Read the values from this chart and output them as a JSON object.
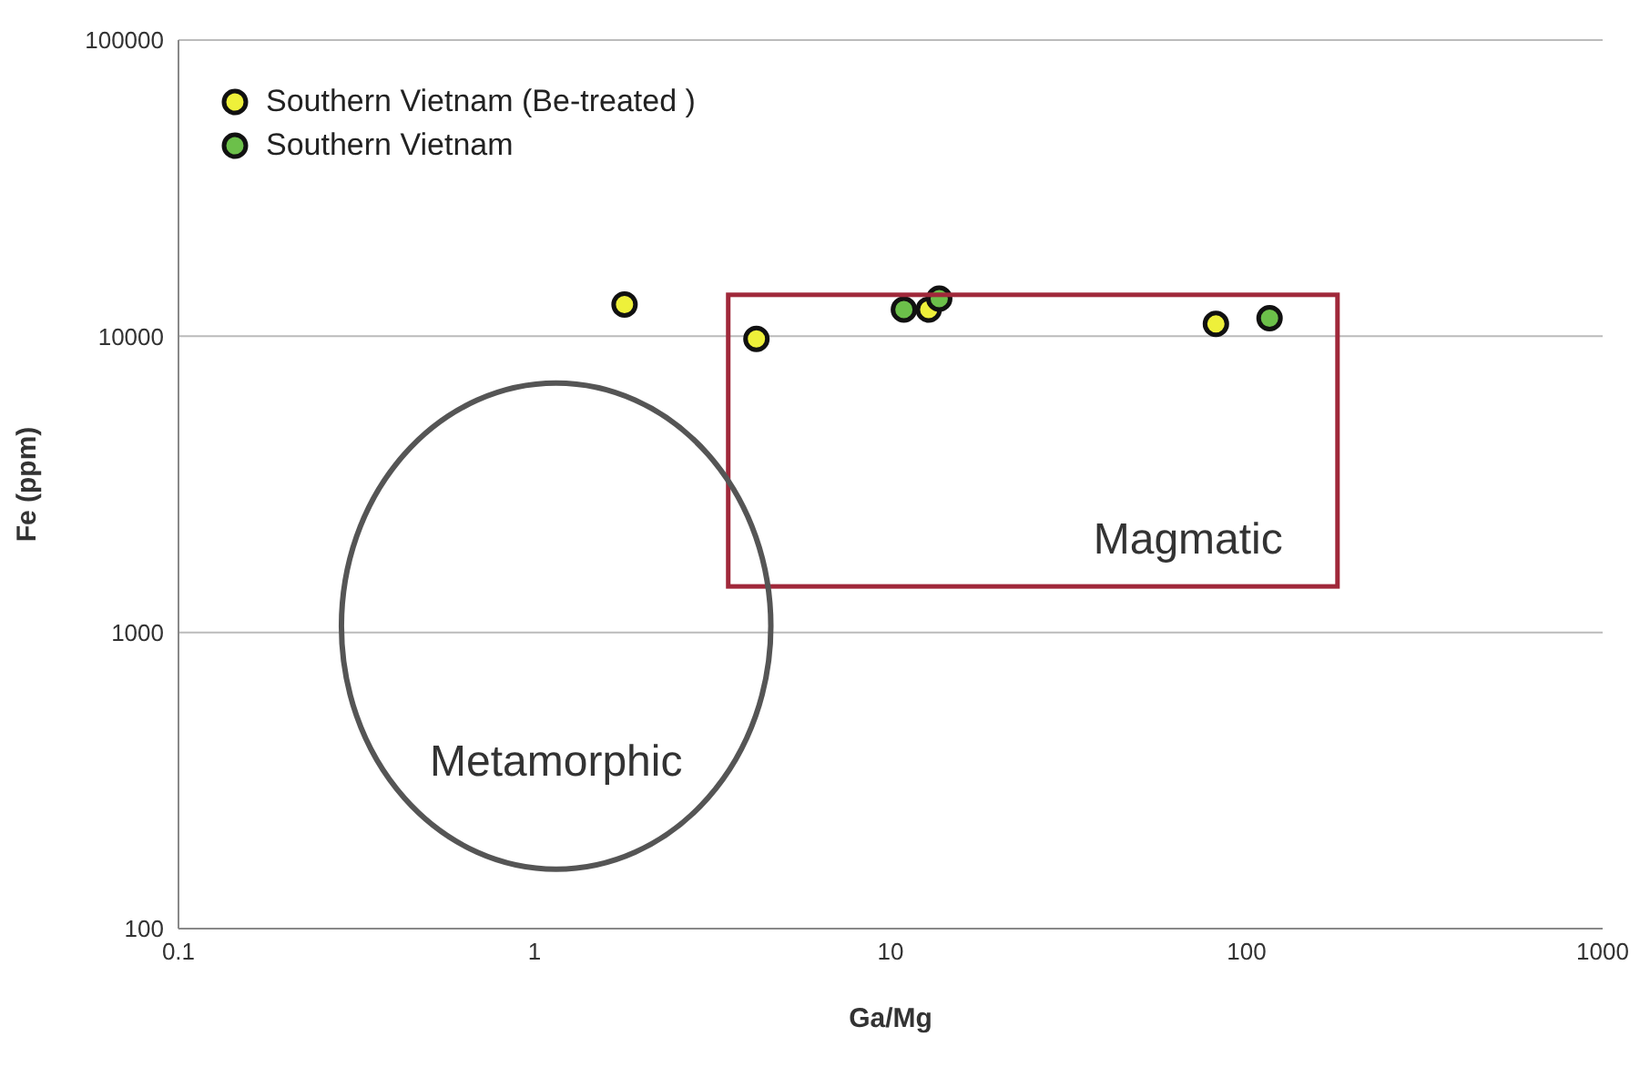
{
  "chart_data": {
    "type": "scatter",
    "xlabel": "Ga/Mg",
    "ylabel": "Fe (ppm)",
    "series": [
      {
        "name": "Southern Vietnam (Be-treated )",
        "color": "#eef03a",
        "x": [
          1.79,
          4.2,
          12.8,
          82
        ],
        "values": [
          12800,
          9800,
          12300,
          11000
        ]
      },
      {
        "name": "Southern Vietnam",
        "color": "#6cc04a",
        "x": [
          10.9,
          13.7,
          116
        ],
        "values": [
          12300,
          13400,
          11500
        ]
      }
    ],
    "annotations": [
      "Magmatic",
      "Metamorphic"
    ],
    "log": "xy",
    "xlim": [
      0.1,
      1000
    ],
    "xticks": [
      0.1,
      1,
      10,
      100,
      1000
    ],
    "ylim": [
      100,
      100000
    ],
    "yticks": [
      100,
      1000,
      10000,
      100000
    ],
    "grid": "y",
    "legend": "top left",
    "marker": "circle"
  }
}
